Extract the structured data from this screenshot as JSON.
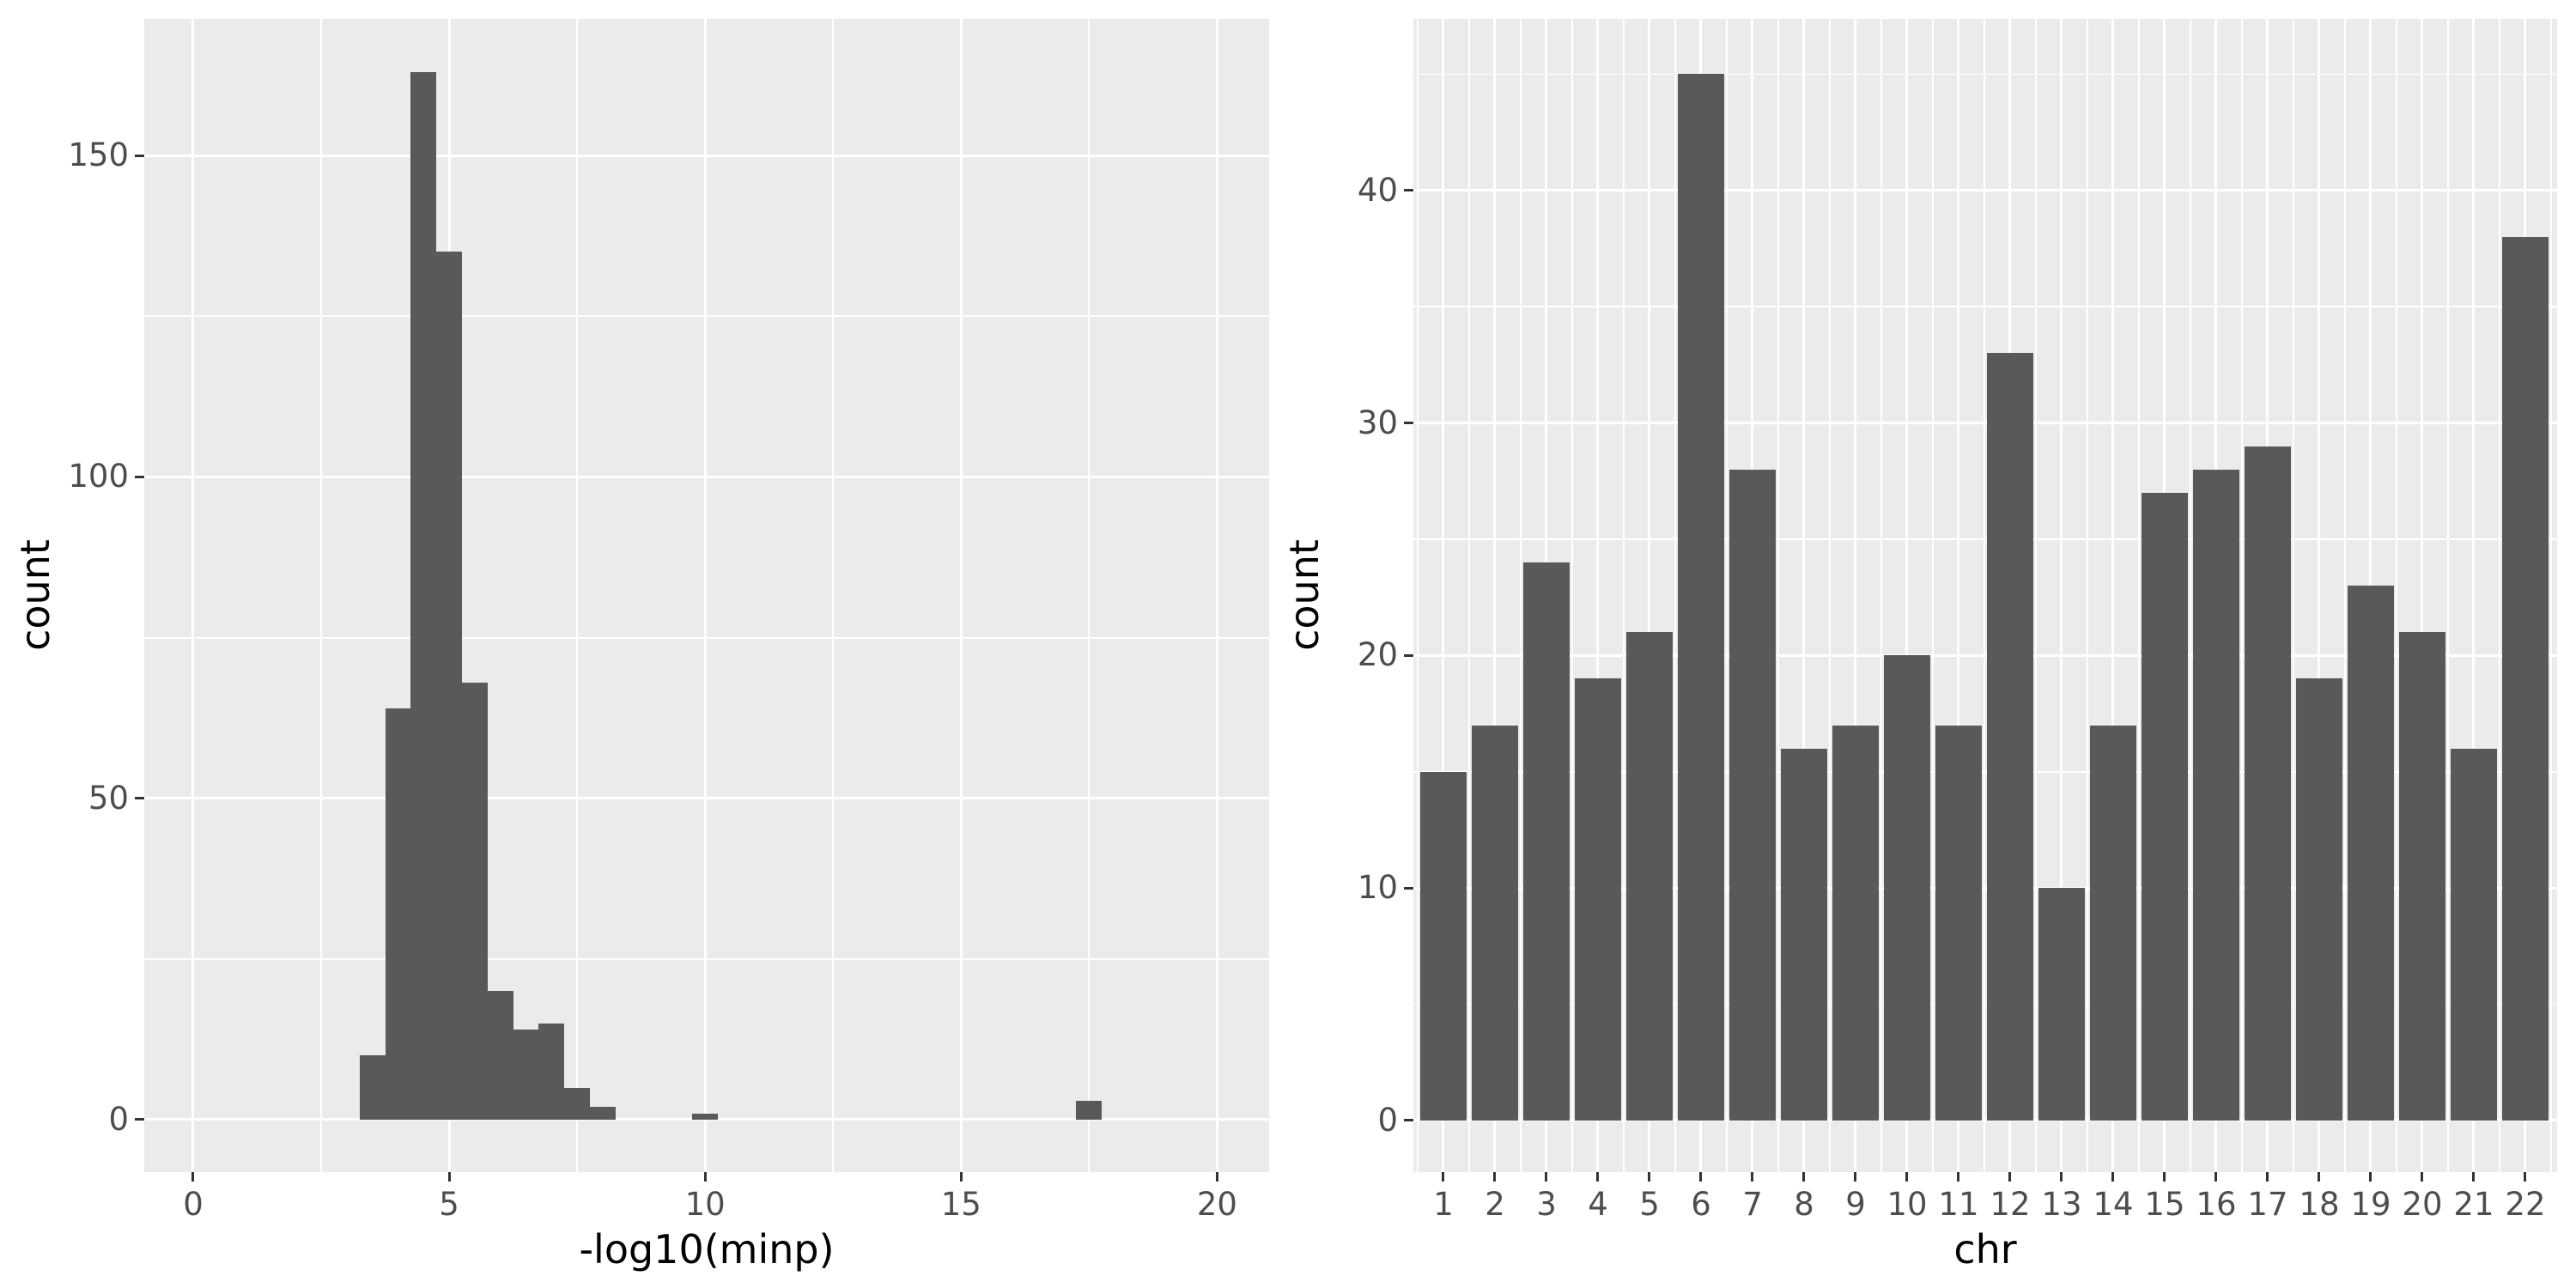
{
  "figure": {
    "background": "#ffffff"
  },
  "colors": {
    "bar_fill": "#595959",
    "panel_bg": "#EBEBEB",
    "grid": "#FFFFFF",
    "tick_label": "#4D4D4D",
    "tick_mark": "#333333",
    "axis_title": "#000000"
  },
  "chart_data": [
    {
      "type": "bar",
      "subtype": "histogram",
      "title": "",
      "xlabel": "-log10(minp)",
      "ylabel": "count",
      "bin_start": 3.25,
      "bin_width": 0.5,
      "bin_counts": [
        10,
        64,
        163,
        135,
        68,
        20,
        14,
        15,
        5,
        2,
        0,
        0,
        0,
        1,
        0,
        0,
        0,
        0,
        0,
        0,
        0,
        0,
        0,
        0,
        0,
        0,
        0,
        0,
        3
      ],
      "x_ticks": [
        0,
        5,
        10,
        15,
        20
      ],
      "x_tick_labels": [
        "0",
        "5",
        "10",
        "15",
        "20"
      ],
      "y_ticks": [
        0,
        50,
        100,
        150
      ],
      "y_tick_labels": [
        "0",
        "50",
        "100",
        "150"
      ],
      "x_minor": [
        2.5,
        7.5,
        12.5,
        17.5
      ],
      "y_minor": [
        25,
        75,
        125
      ],
      "xlim": [
        -0.956,
        21.017
      ],
      "ylim": [
        -8.15,
        171.27
      ],
      "grid": true,
      "legend": "none"
    },
    {
      "type": "bar",
      "subtype": "category-bar",
      "title": "",
      "xlabel": "chr",
      "ylabel": "count",
      "categories": [
        "1",
        "2",
        "3",
        "4",
        "5",
        "6",
        "7",
        "8",
        "9",
        "10",
        "11",
        "12",
        "13",
        "14",
        "15",
        "16",
        "17",
        "18",
        "19",
        "20",
        "21",
        "22"
      ],
      "values": [
        15,
        17,
        24,
        19,
        21,
        45,
        28,
        16,
        17,
        20,
        17,
        33,
        10,
        17,
        27,
        28,
        29,
        19,
        23,
        21,
        16,
        38
      ],
      "bar_width": 0.9,
      "y_ticks": [
        0,
        10,
        20,
        30,
        40
      ],
      "y_tick_labels": [
        "0",
        "10",
        "20",
        "30",
        "40"
      ],
      "y_minor": [
        5,
        15,
        25,
        35,
        45
      ],
      "x_minor_boundaries": true,
      "xlim": [
        0.417,
        22.617
      ],
      "ylim": [
        -2.216,
        47.38
      ],
      "grid": true,
      "legend": "none"
    }
  ]
}
